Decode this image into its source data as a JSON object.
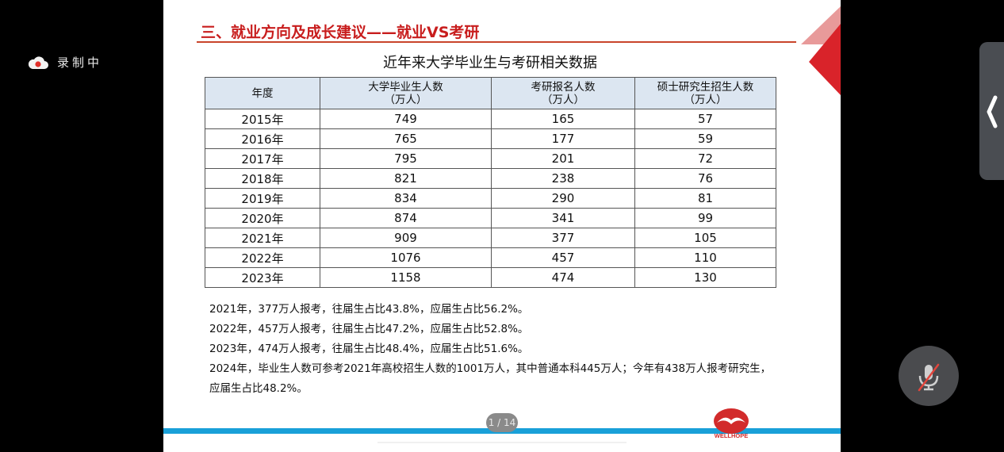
{
  "recording": {
    "label": "录制中"
  },
  "slide": {
    "heading": "三、就业方向及成长建议——就业VS考研",
    "table_title": "近年来大学毕业生与考研相关数据",
    "table": {
      "headers": [
        {
          "line1": "年度",
          "line2": ""
        },
        {
          "line1": "大学毕业生人数",
          "line2": "（万人）"
        },
        {
          "line1": "考研报名人数",
          "line2": "（万人）"
        },
        {
          "line1": "硕士研究生招生人数",
          "line2": "（万人）"
        }
      ],
      "rows": [
        [
          "2015年",
          "749",
          "165",
          "57"
        ],
        [
          "2016年",
          "765",
          "177",
          "59"
        ],
        [
          "2017年",
          "795",
          "201",
          "72"
        ],
        [
          "2018年",
          "821",
          "238",
          "76"
        ],
        [
          "2019年",
          "834",
          "290",
          "81"
        ],
        [
          "2020年",
          "874",
          "341",
          "99"
        ],
        [
          "2021年",
          "909",
          "377",
          "105"
        ],
        [
          "2022年",
          "1076",
          "457",
          "110"
        ],
        [
          "2023年",
          "1158",
          "474",
          "130"
        ]
      ]
    },
    "notes": [
      "2021年，377万人报考，往届生占比43.8%，应届生占比56.2%。",
      "2022年，457万人报考，往届生占比47.2%，应届生占比52.8%。",
      "2023年，474万人报考，往届生占比48.4%，应届生占比51.6%。",
      "2024年，毕业生人数可参考2021年高校招生人数的1001万人，其中普通本科445万人；今年有438万人报考研究生，",
      "应届生占比48.2%。"
    ],
    "page_indicator": "1 / 14",
    "logo_text": "WELLHOPE"
  },
  "colors": {
    "heading_red": "#c81d1d",
    "table_header_bg": "#dce6f1",
    "footer_blue": "#19a0d8"
  },
  "icons": {
    "recording": "cloud-record-icon",
    "side_tab": "chevron-left-icon",
    "mic": "mic-muted-icon"
  }
}
